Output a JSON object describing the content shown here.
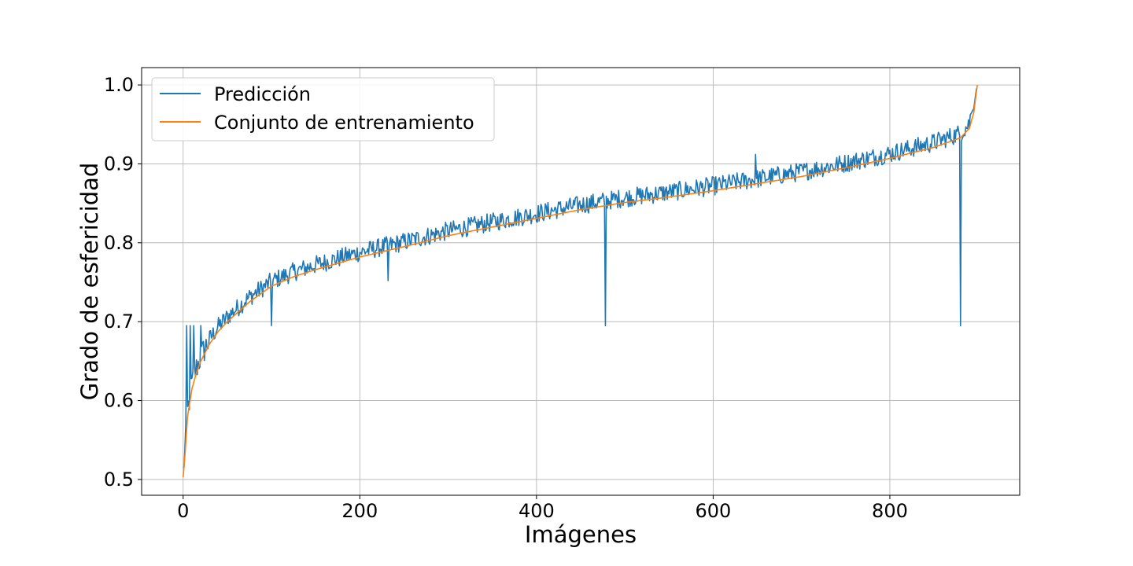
{
  "chart_data": {
    "type": "line",
    "xlabel": "Imágenes",
    "ylabel": "Grado de esfericidad",
    "xlim": [
      -47,
      947
    ],
    "ylim": [
      0.48,
      1.022
    ],
    "xticks": [
      0,
      200,
      400,
      600,
      800
    ],
    "yticks": [
      0.5,
      0.6,
      0.7,
      0.8,
      0.9,
      1.0
    ],
    "xtick_labels": [
      "0",
      "200",
      "400",
      "600",
      "800"
    ],
    "ytick_labels": [
      "0.5",
      "0.6",
      "0.7",
      "0.8",
      "0.9",
      "1.0"
    ],
    "grid": true,
    "legend_position": "upper-left",
    "n_points": 900,
    "series": [
      {
        "name": "Predicción",
        "color": "#1f77b4",
        "description_points": {
          "x": [
            0,
            2,
            4,
            6,
            8,
            10,
            12,
            15,
            20,
            25,
            30,
            40,
            50,
            60,
            75,
            90,
            100,
            110,
            120,
            140,
            160,
            180,
            200,
            220,
            232,
            240,
            260,
            280,
            300,
            320,
            340,
            360,
            380,
            400,
            420,
            440,
            460,
            476,
            478,
            480,
            500,
            520,
            540,
            560,
            580,
            600,
            620,
            640,
            648,
            660,
            680,
            700,
            720,
            740,
            760,
            780,
            800,
            820,
            840,
            860,
            878,
            880,
            882,
            890,
            895,
            898
          ],
          "y": [
            0.53,
            0.58,
            0.695,
            0.57,
            0.695,
            0.62,
            0.695,
            0.66,
            0.695,
            0.68,
            0.685,
            0.705,
            0.71,
            0.72,
            0.73,
            0.74,
            0.695,
            0.75,
            0.765,
            0.77,
            0.775,
            0.785,
            0.795,
            0.795,
            0.752,
            0.8,
            0.805,
            0.81,
            0.825,
            0.82,
            0.825,
            0.83,
            0.84,
            0.835,
            0.84,
            0.85,
            0.85,
            0.86,
            0.695,
            0.855,
            0.86,
            0.865,
            0.865,
            0.87,
            0.875,
            0.87,
            0.875,
            0.88,
            0.912,
            0.885,
            0.88,
            0.89,
            0.895,
            0.9,
            0.905,
            0.91,
            0.915,
            0.92,
            0.93,
            0.935,
            0.95,
            0.695,
            0.955,
            0.96,
            0.97,
            0.995
          ]
        }
      },
      {
        "name": "Conjunto de entrenamiento",
        "color": "#ff7f0e",
        "description_points": {
          "x": [
            0,
            2,
            5,
            10,
            15,
            20,
            30,
            40,
            50,
            75,
            100,
            125,
            150,
            200,
            250,
            300,
            350,
            400,
            450,
            500,
            550,
            600,
            650,
            700,
            750,
            800,
            850,
            880,
            890,
            895,
            899
          ],
          "y": [
            0.503,
            0.53,
            0.58,
            0.615,
            0.635,
            0.65,
            0.672,
            0.688,
            0.7,
            0.725,
            0.745,
            0.757,
            0.766,
            0.782,
            0.795,
            0.809,
            0.82,
            0.831,
            0.842,
            0.851,
            0.858,
            0.866,
            0.875,
            0.884,
            0.895,
            0.907,
            0.921,
            0.933,
            0.945,
            0.965,
            1.0
          ]
        }
      }
    ]
  }
}
